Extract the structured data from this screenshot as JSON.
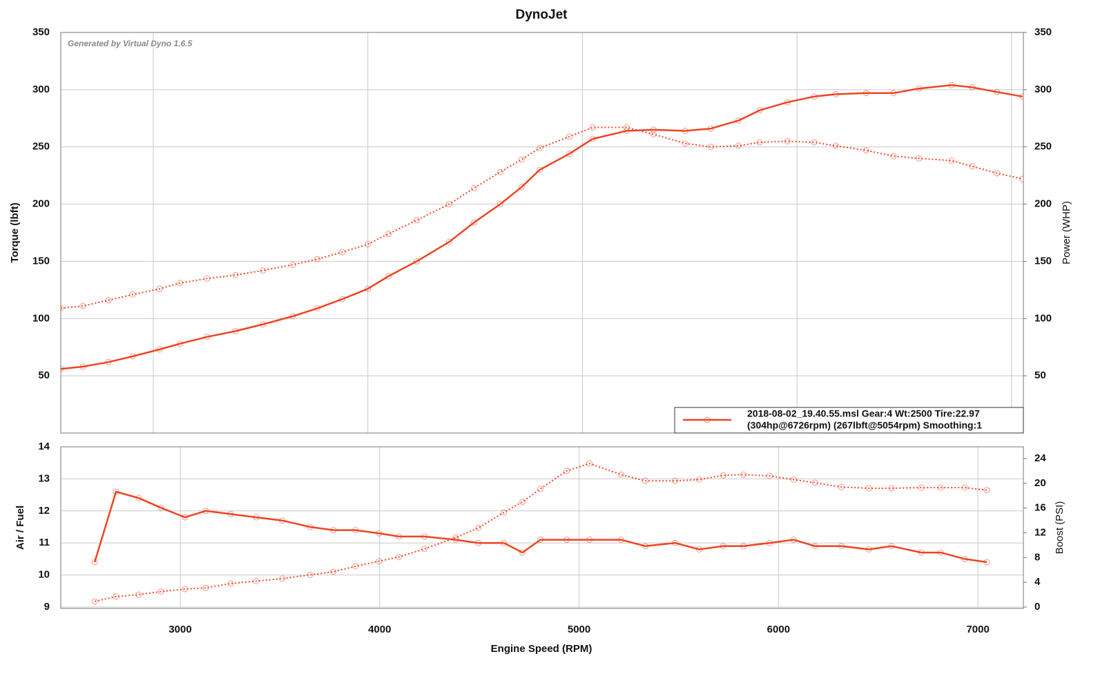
{
  "chart_data": [
    {
      "type": "line",
      "title": "DynoJet",
      "annotation": "Generated by Virtual Dyno 1.6.5",
      "ylabel": "Torque (lbft)",
      "y2label": "Power (WHP)",
      "legend_text": [
        "2018-08-02_19.40.55.msl Gear:4 Wt:2500 Tire:22.97",
        "(304hp@6726rpm) (267lbft@5054rpm) Smoothing:1"
      ],
      "legend": "lower right",
      "grid": true,
      "xlim": [
        2569,
        7055
      ],
      "xticks": [
        3000,
        4000,
        5000,
        6000,
        7000
      ],
      "ylim": [
        0,
        350
      ],
      "yticks": [
        50,
        100,
        150,
        200,
        250,
        300,
        350
      ],
      "y2lim": [
        0,
        350
      ],
      "y2ticks": [
        50,
        100,
        150,
        200,
        250,
        300,
        350
      ],
      "x": [
        2569,
        2672,
        2791,
        2904,
        3029,
        3125,
        3251,
        3383,
        3511,
        3650,
        3765,
        3881,
        4000,
        4096,
        4228,
        4379,
        4495,
        4617,
        4717,
        4801,
        4939,
        5048,
        5206,
        5331,
        5479,
        5598,
        5727,
        5826,
        5955,
        6080,
        6180,
        6322,
        6450,
        6569,
        6720,
        6817,
        6932,
        7051
      ],
      "series": [
        {
          "name": "Torque",
          "color": "#ee4422",
          "style": "dotted",
          "values": [
            109,
            111,
            116,
            121,
            126,
            131,
            135,
            138,
            142,
            147,
            152,
            158,
            165,
            174,
            186,
            200,
            214,
            228,
            239,
            249,
            259,
            267,
            267,
            261,
            253,
            250,
            251,
            254,
            255,
            254,
            251,
            247,
            242,
            240,
            238,
            233,
            227,
            222
          ]
        },
        {
          "name": "Power",
          "color": "#ee4422",
          "style": "solid",
          "axis": "y2",
          "values": [
            56,
            58,
            62,
            67,
            73,
            78,
            84,
            89,
            95,
            102,
            109,
            117,
            126,
            137,
            150,
            167,
            184,
            200,
            215,
            230,
            244,
            257,
            264,
            265,
            264,
            266,
            273,
            282,
            289,
            294,
            296,
            297,
            297,
            301,
            304,
            302,
            298,
            294
          ]
        }
      ]
    },
    {
      "type": "line",
      "xlabel": "Engine Speed (RPM)",
      "ylabel": "Air / Fuel",
      "y2label": "Boost (PSI)",
      "grid": true,
      "xlim": [
        2401,
        7228
      ],
      "xticks": [
        3000,
        4000,
        5000,
        6000,
        7000
      ],
      "ylim": [
        9,
        14
      ],
      "yticks": [
        9,
        10,
        11,
        12,
        13,
        14
      ],
      "y2lim": [
        0,
        25.9
      ],
      "y2ticks": [
        0,
        4,
        8,
        12,
        16,
        20,
        24
      ],
      "x": [
        2571,
        2678,
        2792,
        2903,
        3024,
        3128,
        3253,
        3381,
        3512,
        3651,
        3768,
        3879,
        3997,
        4097,
        4225,
        4381,
        4495,
        4623,
        4716,
        4806,
        4938,
        5052,
        5211,
        5332,
        5481,
        5602,
        5723,
        5824,
        5955,
        6076,
        6183,
        6315,
        6453,
        6567,
        6716,
        6813,
        6934,
        7045
      ],
      "series": [
        {
          "name": "Air / Fuel",
          "color": "#ee4422",
          "style": "solid",
          "values": [
            10.4,
            12.6,
            12.4,
            12.1,
            11.8,
            12.0,
            11.9,
            11.8,
            11.7,
            11.5,
            11.4,
            11.4,
            11.3,
            11.2,
            11.2,
            11.1,
            11.0,
            11.0,
            10.7,
            11.1,
            11.1,
            11.1,
            11.1,
            10.9,
            11.0,
            10.8,
            10.9,
            10.9,
            11.0,
            11.1,
            10.9,
            10.9,
            10.8,
            10.9,
            10.7,
            10.7,
            10.5,
            10.4
          ]
        },
        {
          "name": "Boost",
          "color": "#ee4422",
          "style": "dotted",
          "axis": "y2",
          "values": [
            0.9,
            1.7,
            2.0,
            2.5,
            2.9,
            3.1,
            3.8,
            4.2,
            4.6,
            5.2,
            5.7,
            6.6,
            7.4,
            8.1,
            9.4,
            11.2,
            12.8,
            15.3,
            17.0,
            19.1,
            22.0,
            23.2,
            21.4,
            20.4,
            20.4,
            20.6,
            21.3,
            21.4,
            21.2,
            20.6,
            20.1,
            19.4,
            19.2,
            19.2,
            19.3,
            19.3,
            19.3,
            18.9
          ]
        }
      ]
    }
  ]
}
